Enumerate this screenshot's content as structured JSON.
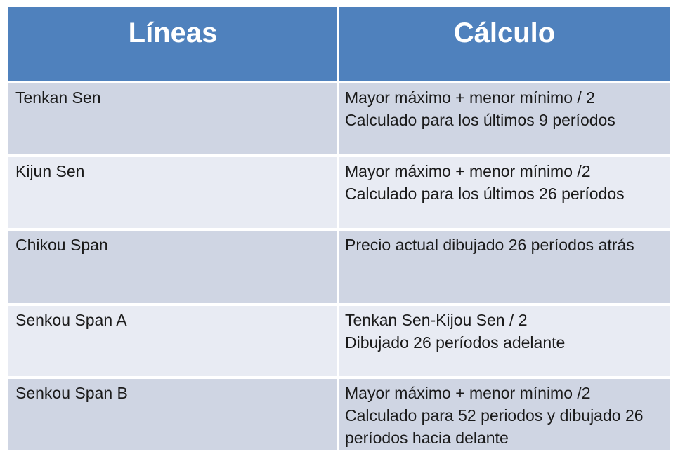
{
  "slide": {
    "header": {
      "lines_label": "Líneas",
      "calc_label": "Cálculo"
    },
    "rows": [
      {
        "line": "Tenkan Sen",
        "calc": "Mayor máximo + menor mínimo / 2\nCalculado para los últimos 9 períodos"
      },
      {
        "line": "Kijun Sen",
        "calc": "Mayor máximo + menor mínimo /2\nCalculado para los últimos 26 períodos"
      },
      {
        "line": "Chikou Span",
        "calc": "Precio actual dibujado 26 períodos atrás"
      },
      {
        "line": "Senkou Span A",
        "calc": "Tenkan Sen-Kijou Sen / 2\nDibujado 26 períodos adelante"
      },
      {
        "line": "Senkou Span B",
        "calc": "Mayor máximo + menor mínimo /2\nCalculado para 52 periodos y dibujado 26 períodos hacia delante"
      }
    ],
    "colors": {
      "header_bg": "#4F81BD",
      "band_dark": "#CFD5E3",
      "band_light": "#E8EBF3",
      "header_text": "#FFFFFF",
      "body_text": "#1A1A1A",
      "page_bg": "#FFFFFF"
    }
  }
}
